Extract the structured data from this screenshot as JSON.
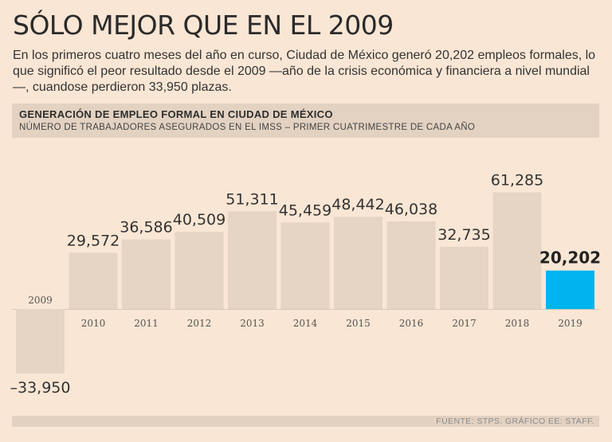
{
  "headline": "SÓLO MEJOR QUE EN EL 2009",
  "intro": "En los primeros cuatro meses del año en curso, Ciudad de México generó 20,202 empleos formales, lo que significó el peor resultado desde el 2009 —año de la crisis económica y financiera a nivel mundial—, cuandose perdieron 33,950 plazas.",
  "colors": {
    "background": "#fae6d4",
    "bar": "#e6d4c4",
    "highlight": "#00b4ef",
    "header_band": "#e3d2c2"
  },
  "chart_data": {
    "type": "bar",
    "title": "GENERACIÓN DE EMPLEO FORMAL EN CIUDAD DE MÉXICO",
    "subtitle": "NÚMERO DE TRABAJADORES ASEGURADOS EN EL IMSS – PRIMER CUATRIMESTRE DE CADA AÑO",
    "categories": [
      "2009",
      "2010",
      "2011",
      "2012",
      "2013",
      "2014",
      "2015",
      "2016",
      "2017",
      "2018",
      "2019"
    ],
    "values": [
      -33950,
      29572,
      36586,
      40509,
      51311,
      45459,
      48442,
      46038,
      32735,
      61285,
      20202
    ],
    "labels": [
      "–33,950",
      "29,572",
      "36,586",
      "40,509",
      "51,311",
      "45,459",
      "48,442",
      "46,038",
      "32,735",
      "61,285",
      "20,202"
    ],
    "highlight": "2019",
    "xlabel": "",
    "ylabel": ""
  },
  "source": "FUENTE: STPS. GRÁFICO EE: STAFF."
}
